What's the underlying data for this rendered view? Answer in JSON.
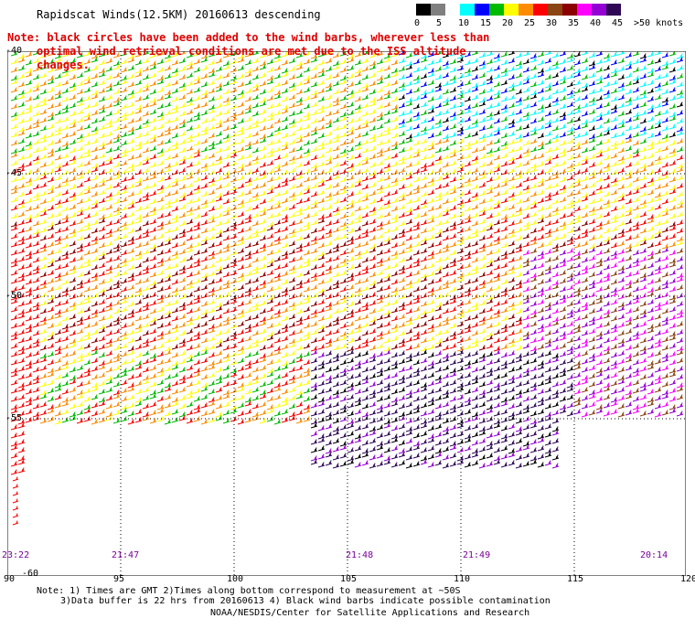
{
  "header": {
    "title": "Rapidscat Winds(12.5KM) 20160613 descending",
    "note_line1": "Note: black circles have been added to the wind barbs, wherever less than",
    "note_line2": "optimal wind retrieval conditions are met due to the ISS altitude changes."
  },
  "legend": {
    "labels": [
      "0",
      "5",
      "10",
      "15",
      "20",
      "25",
      "30",
      "35",
      "40",
      "45",
      ">50 knots"
    ],
    "colors": [
      "#000000",
      "#7f7f7f",
      "#ffffff",
      "#00ffff",
      "#0000ff",
      "#00bb00",
      "#ffff00",
      "#ff8c00",
      "#ff0000",
      "#8b4513",
      "#8b0000",
      "#ff00ff",
      "#9400d3",
      "#2e0854"
    ]
  },
  "map": {
    "lon_labels": [
      "90",
      "95",
      "100",
      "105",
      "110",
      "115",
      "120"
    ],
    "lat_labels": [
      "-40",
      "-45",
      "-50",
      "-55",
      "-60"
    ],
    "time_labels": [
      "23:22",
      "21:47",
      "21:48",
      "21:49",
      "20:14"
    ]
  },
  "footer": {
    "footnote_line1": "Note: 1) Times are GMT 2)Times along bottom correspond to measurement at ~50S",
    "footnote_line2": "3)Data buffer is 22 hrs from 20160613 4) Black wind barbs indicate possible contamination",
    "credit": "NOAA/NESDIS/Center for Satellite Applications and Research"
  }
}
